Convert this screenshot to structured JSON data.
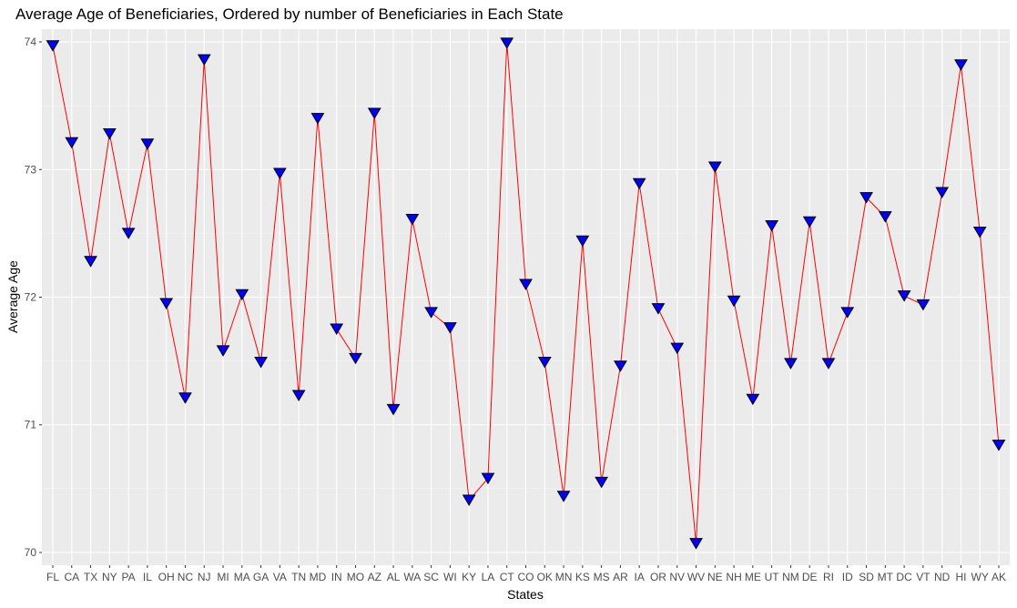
{
  "chart_data": {
    "type": "line",
    "title": "Average Age of Beneficiaries, Ordered by number of Beneficiaries in Each State",
    "xlabel": "States",
    "ylabel": "Average Age",
    "ylim": [
      69.9,
      74.1
    ],
    "yticks": [
      70,
      71,
      72,
      73,
      74
    ],
    "grid": true,
    "categories": [
      "FL",
      "CA",
      "TX",
      "NY",
      "PA",
      "IL",
      "OH",
      "NC",
      "NJ",
      "MI",
      "MA",
      "GA",
      "VA",
      "TN",
      "MD",
      "IN",
      "MO",
      "AZ",
      "AL",
      "WA",
      "SC",
      "WI",
      "KY",
      "LA",
      "CT",
      "CO",
      "OK",
      "MN",
      "KS",
      "MS",
      "AR",
      "IA",
      "OR",
      "NV",
      "WV",
      "NE",
      "NH",
      "ME",
      "UT",
      "NM",
      "DE",
      "RI",
      "ID",
      "SD",
      "MT",
      "DC",
      "VT",
      "ND",
      "HI",
      "WY",
      "AK"
    ],
    "values": [
      73.97,
      73.21,
      72.28,
      73.28,
      72.5,
      73.2,
      71.95,
      71.21,
      73.86,
      71.58,
      72.02,
      71.49,
      72.97,
      71.23,
      73.4,
      71.75,
      71.52,
      73.44,
      71.12,
      72.61,
      71.88,
      71.76,
      70.41,
      70.58,
      73.99,
      72.1,
      71.49,
      70.44,
      72.44,
      70.55,
      71.46,
      72.89,
      71.91,
      71.6,
      70.07,
      73.02,
      71.97,
      71.2,
      72.56,
      71.48,
      72.59,
      71.48,
      71.88,
      72.78,
      72.63,
      72.01,
      71.94,
      72.82,
      73.82,
      72.51,
      70.84
    ],
    "series": [
      {
        "line_color": "#ff0000",
        "marker": "triangle-down",
        "marker_fill": "#0000ff",
        "marker_stroke": "#000000"
      }
    ],
    "colors": {
      "panel": "#ebebeb",
      "grid_major": "#ffffff",
      "grid_minor": "#f5f5f5",
      "text": "#000000",
      "tick_text": "#4d4d4d"
    }
  }
}
